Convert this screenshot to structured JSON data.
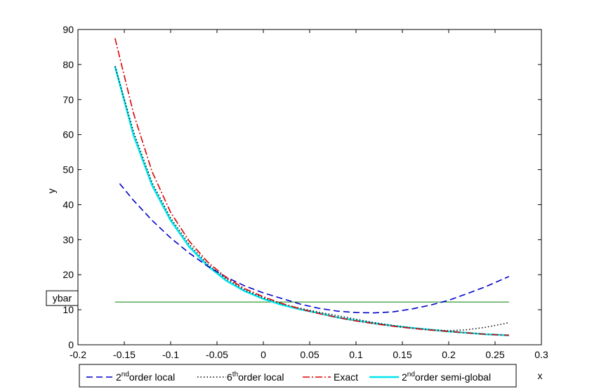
{
  "chart_data": {
    "type": "line",
    "xlabel": "x",
    "ylabel": "y",
    "xlim": [
      -0.2,
      0.3
    ],
    "ylim": [
      0,
      90
    ],
    "xticks": [
      "-0.2",
      "-0.15",
      "-0.1",
      "-0.05",
      "0",
      "0.05",
      "0.1",
      "0.15",
      "0.2",
      "0.25",
      "0.3"
    ],
    "yticks": [
      "0",
      "10",
      "20",
      "30",
      "40",
      "50",
      "60",
      "70",
      "80",
      "90"
    ],
    "grid": false,
    "legend_position": "bottom",
    "x": [
      -0.16,
      -0.14,
      -0.12,
      -0.1,
      -0.08,
      -0.06,
      -0.04,
      -0.02,
      0,
      0.02,
      0.04,
      0.06,
      0.08,
      0.1,
      0.12,
      0.14,
      0.16,
      0.18,
      0.2,
      0.22,
      0.24,
      0.265
    ],
    "series": [
      {
        "name_base": "2",
        "name_sup": "nd",
        "name_rest": "order local",
        "color": "#0000cc",
        "dash": "9,5",
        "width": 1.6,
        "x": [
          -0.155,
          -0.14,
          -0.12,
          -0.1,
          -0.08,
          -0.06,
          -0.04,
          -0.02,
          0,
          0.02,
          0.04,
          0.06,
          0.08,
          0.1,
          0.12,
          0.14,
          0.16,
          0.18,
          0.2,
          0.22,
          0.24,
          0.265
        ],
        "values": [
          46,
          41.2,
          35.5,
          30.5,
          26.2,
          22.4,
          19.3,
          16.8,
          14.8,
          13.2,
          11.6,
          10.4,
          9.6,
          9.2,
          9.1,
          9.4,
          10.2,
          11.3,
          12.7,
          14.6,
          16.6,
          19.5
        ]
      },
      {
        "name_base": "6",
        "name_sup": "th",
        "name_rest": "order local",
        "color": "#000000",
        "dash": "1.5,3",
        "width": 1.5,
        "values": [
          79.5,
          60.8,
          46.3,
          36.2,
          28.7,
          23.0,
          18.8,
          15.6,
          13.4,
          11.7,
          10.4,
          9.3,
          8.3,
          7.3,
          6.3,
          5.5,
          4.8,
          4.3,
          4.0,
          4.3,
          5.0,
          6.3
        ]
      },
      {
        "name_base": "Exact",
        "name_sup": "",
        "name_rest": "",
        "color": "#dd0000",
        "dash": "10,3,2,3",
        "width": 1.6,
        "values": [
          87.5,
          66.0,
          49.4,
          37.8,
          29.6,
          23.6,
          19.2,
          16.0,
          13.7,
          11.8,
          10.2,
          8.9,
          7.8,
          6.8,
          6.0,
          5.3,
          4.7,
          4.2,
          3.8,
          3.4,
          3.0,
          2.7
        ]
      },
      {
        "name_base": "2",
        "name_sup": "nd",
        "name_rest": "order semi-global",
        "color": "#00e5ee",
        "dash": "",
        "width": 2.6,
        "values": [
          79.5,
          59.8,
          45.5,
          35.5,
          28.0,
          22.5,
          18.3,
          15.3,
          13.1,
          11.4,
          10.1,
          9.0,
          7.8,
          6.9,
          6.1,
          5.4,
          4.8,
          4.3,
          3.8,
          3.4,
          3.0,
          2.7
        ]
      }
    ],
    "reference_line": {
      "label": "ybar",
      "value": 12.2,
      "color": "#008000",
      "x_range": [
        -0.16,
        0.265
      ]
    }
  }
}
